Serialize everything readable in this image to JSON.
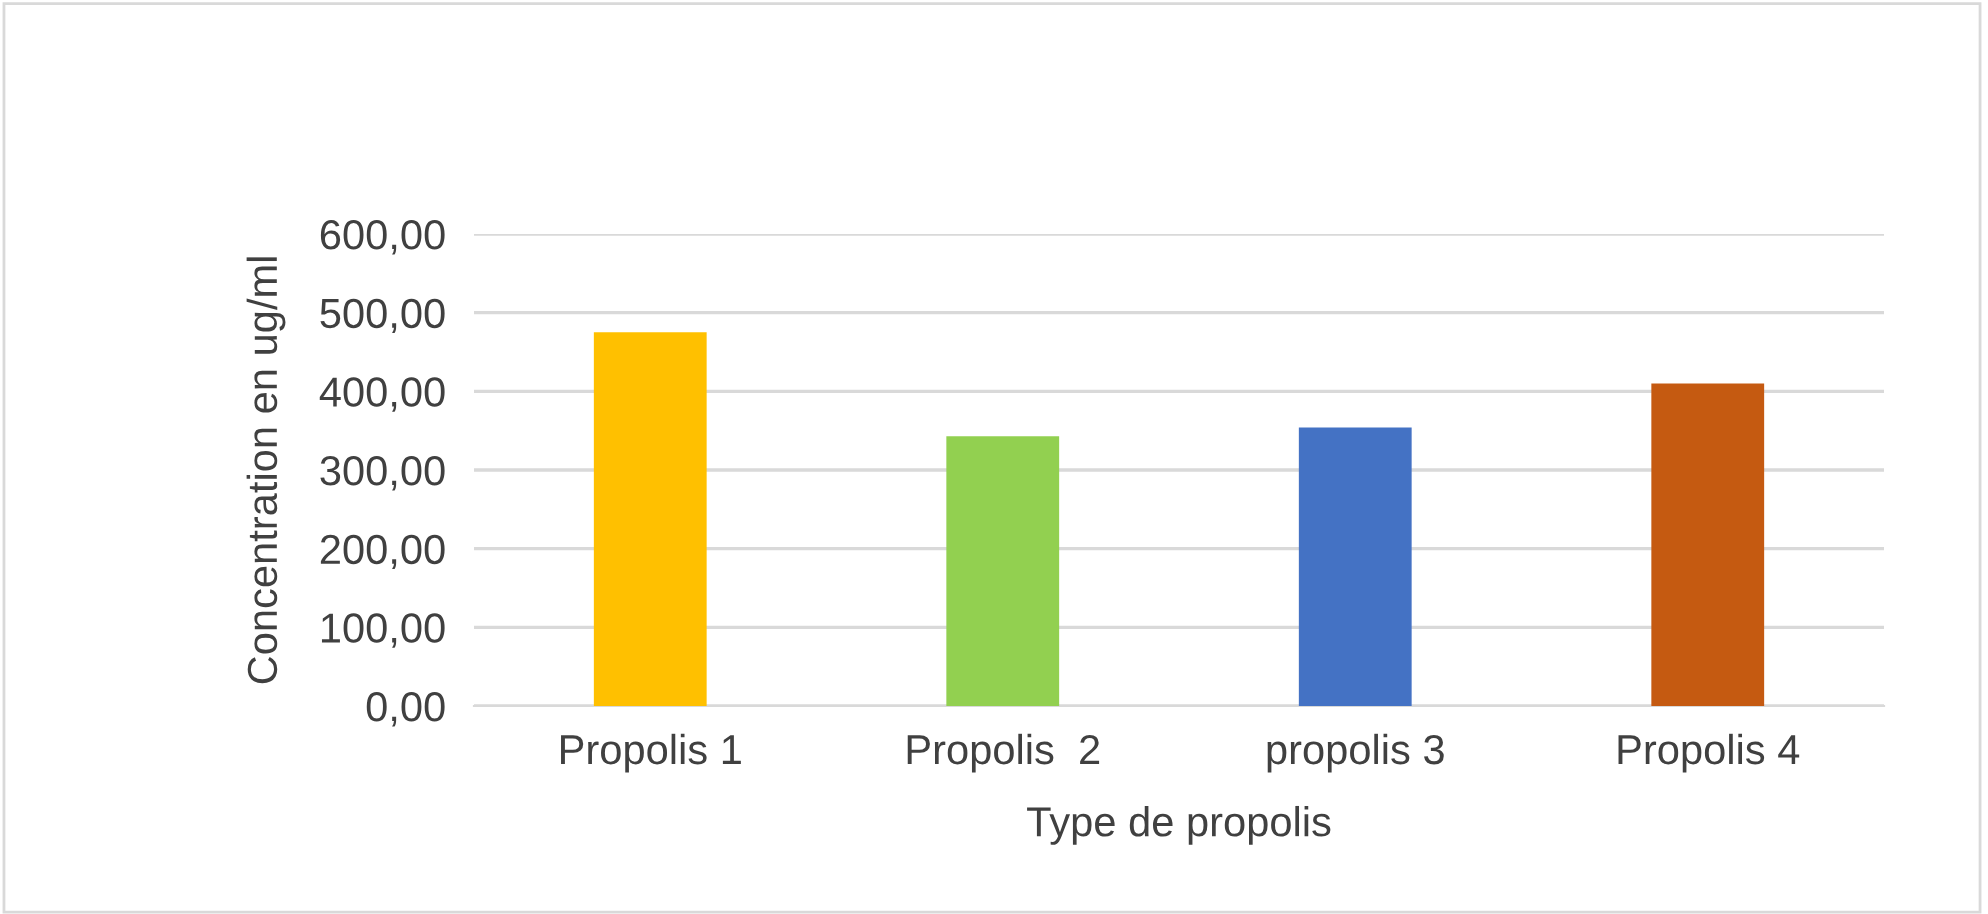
{
  "chart_data": {
    "type": "bar",
    "xlabel": "Type de propolis",
    "ylabel": "Concentration en ug/ml",
    "categories": [
      "Propolis 1",
      "Propolis  2",
      "propolis 3",
      "Propolis 4"
    ],
    "values": [
      475,
      343,
      354,
      410
    ],
    "colors": [
      "#ffc000",
      "#92d050",
      "#4472c4",
      "#c55a11"
    ],
    "ylim": [
      0,
      600
    ],
    "yticks": [
      {
        "value": 0,
        "label": "0,00"
      },
      {
        "value": 100,
        "label": "100,00"
      },
      {
        "value": 200,
        "label": "200,00"
      },
      {
        "value": 300,
        "label": "300,00"
      },
      {
        "value": 400,
        "label": "400,00"
      },
      {
        "value": 500,
        "label": "500,00"
      },
      {
        "value": 600,
        "label": "600,00"
      }
    ],
    "grid": "y"
  }
}
